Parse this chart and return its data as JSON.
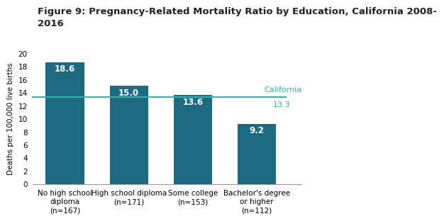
{
  "title": "Figure 9: Pregnancy-Related Mortality Ratio by Education, California 2008-\n2016",
  "categories": [
    "No high school\ndiploma\n(n=167)",
    "High school diploma\n(n=171)",
    "Some college\n(n=153)",
    "Bachelor's degree\nor higher\n(n=112)"
  ],
  "values": [
    18.6,
    15.0,
    13.6,
    9.2
  ],
  "bar_color": "#1c6b82",
  "label_color": "#ffffff",
  "reference_line_value": 13.3,
  "reference_line_color": "#3aafa9",
  "reference_label_line1": "California",
  "reference_label_line2": "13.3",
  "ylabel": "Deaths per 100,000 live births",
  "ylim": [
    0,
    20
  ],
  "yticks": [
    0,
    2,
    4,
    6,
    8,
    10,
    12,
    14,
    16,
    18,
    20
  ],
  "title_fontsize": 9.5,
  "label_fontsize": 8.5,
  "tick_fontsize": 7.5,
  "ylabel_fontsize": 7.5,
  "ref_label_fontsize": 8.0
}
